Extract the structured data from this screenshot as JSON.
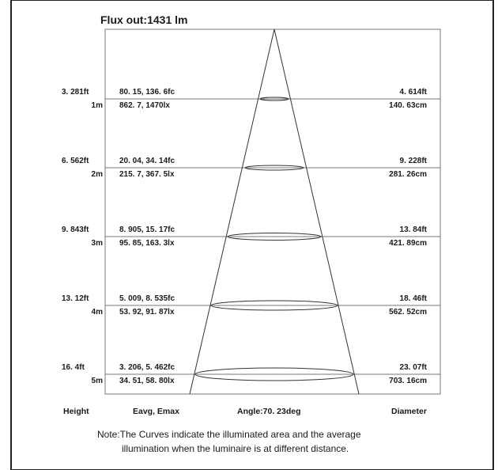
{
  "title": "Flux out:1431 lm",
  "rows": [
    {
      "height_ft": "3. 281ft",
      "height_m": "1m",
      "illum_fc": "80. 15, 136. 6fc",
      "illum_lx": "862. 7, 1470lx",
      "diam_ft": "4. 614ft",
      "diam_cm": "140. 63cm"
    },
    {
      "height_ft": "6. 562ft",
      "height_m": "2m",
      "illum_fc": "20. 04, 34. 14fc",
      "illum_lx": "215. 7, 367. 5lx",
      "diam_ft": "9. 228ft",
      "diam_cm": "281. 26cm"
    },
    {
      "height_ft": "9. 843ft",
      "height_m": "3m",
      "illum_fc": "8. 905, 15. 17fc",
      "illum_lx": "95. 85, 163. 3lx",
      "diam_ft": "13. 84ft",
      "diam_cm": "421. 89cm"
    },
    {
      "height_ft": "13. 12ft",
      "height_m": "4m",
      "illum_fc": "5. 009, 8. 535fc",
      "illum_lx": "53. 92, 91. 87lx",
      "diam_ft": "18. 46ft",
      "diam_cm": "562. 52cm"
    },
    {
      "height_ft": "16. 4ft",
      "height_m": "5m",
      "illum_fc": "3. 206, 5. 462fc",
      "illum_lx": "34. 51, 58. 80lx",
      "diam_ft": "23. 07ft",
      "diam_cm": "703. 16cm"
    }
  ],
  "footer": {
    "height": "Height",
    "eavg": "Eavg, Emax",
    "angle": "Angle:70. 23deg",
    "diameter": "Diameter"
  },
  "note": {
    "line1": "Note:The Curves indicate the illuminated area and the average",
    "line2": "illumination when the luminaire is at different distance."
  }
}
